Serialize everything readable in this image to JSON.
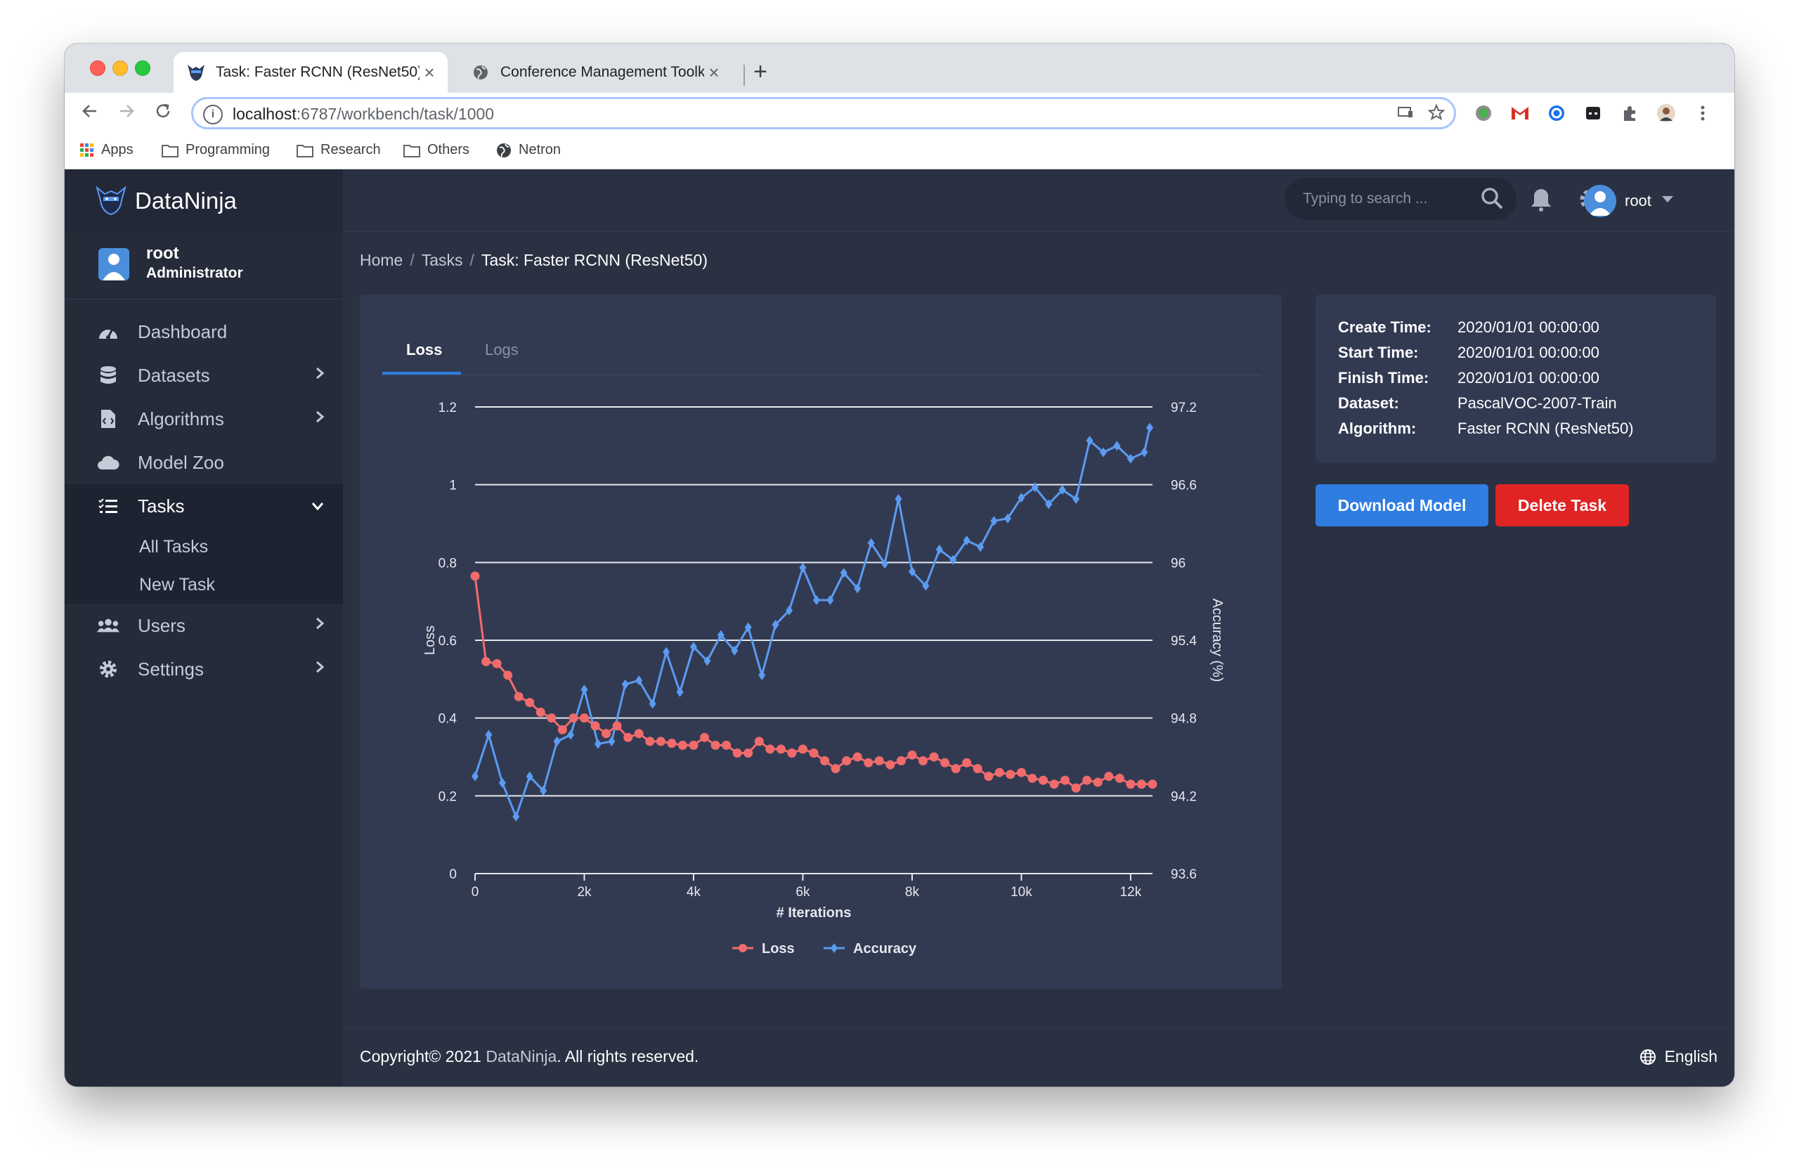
{
  "browser": {
    "tabs": [
      {
        "title": "Task: Faster RCNN (ResNet50)",
        "close": "×"
      },
      {
        "title": "Conference Management Toolk",
        "close": "×"
      }
    ],
    "new_tab": "+",
    "url_host": "localhost",
    "url_path": ":6787/workbench/task/1000",
    "bookmarks": [
      "Apps",
      "Programming",
      "Research",
      "Others",
      "Netron"
    ]
  },
  "app": {
    "brand": "DataNinja",
    "user": {
      "name": "root",
      "role": "Administrator"
    },
    "nav": [
      {
        "label": "Dashboard",
        "icon": "dashboard-icon"
      },
      {
        "label": "Datasets",
        "icon": "database-icon"
      },
      {
        "label": "Algorithms",
        "icon": "file-code-icon"
      },
      {
        "label": "Model Zoo",
        "icon": "cloud-icon"
      },
      {
        "label": "Tasks",
        "icon": "tasks-icon"
      },
      {
        "label": "Users",
        "icon": "users-icon"
      },
      {
        "label": "Settings",
        "icon": "gear-icon"
      }
    ],
    "tasks_sub": [
      "All Tasks",
      "New Task"
    ],
    "search_placeholder": "Typing to search ...",
    "header_user": "root",
    "breadcrumb": [
      "Home",
      "Tasks",
      "Task: Faster RCNN (ResNet50)"
    ],
    "chart_tabs": [
      "Loss",
      "Logs"
    ],
    "info": [
      {
        "key": "Create Time:",
        "value": "2020/01/01 00:00:00"
      },
      {
        "key": "Start Time:",
        "value": "2020/01/01 00:00:00"
      },
      {
        "key": "Finish Time:",
        "value": "2020/01/01 00:00:00"
      },
      {
        "key": "Dataset:",
        "value": "PascalVOC-2007-Train"
      },
      {
        "key": "Algorithm:",
        "value": "Faster RCNN (ResNet50)"
      }
    ],
    "buttons": {
      "download": "Download Model",
      "delete": "Delete Task"
    },
    "footer": {
      "prefix": "Copyright© 2021 ",
      "brand": "DataNinja",
      "suffix": ". All rights reserved.",
      "language": "English"
    }
  },
  "colors": {
    "loss": "#f06b6b",
    "accuracy": "#5b9bf0",
    "accent": "#2f7de1",
    "danger": "#e02424"
  },
  "chart_data": {
    "type": "line",
    "xlabel": "# Iterations",
    "ylabel": "Loss",
    "y2label": "Accuracy (%)",
    "xlim": [
      0,
      12400
    ],
    "xticks": [
      "0",
      "2k",
      "4k",
      "6k",
      "8k",
      "10k",
      "12k"
    ],
    "ylim": [
      0,
      1.2
    ],
    "yticks": [
      "0",
      "0.2",
      "0.4",
      "0.6",
      "0.8",
      "1",
      "1.2"
    ],
    "y2lim": [
      93.6,
      97.2
    ],
    "y2ticks": [
      "93.6",
      "94.2",
      "94.8",
      "95.4",
      "96",
      "96.6",
      "97.2"
    ],
    "legend": [
      "Loss",
      "Accuracy"
    ],
    "grid": true,
    "series": [
      {
        "name": "Loss",
        "axis": "left",
        "x": [
          0,
          200,
          400,
          600,
          800,
          1000,
          1200,
          1400,
          1600,
          1800,
          2000,
          2200,
          2400,
          2600,
          2800,
          3000,
          3200,
          3400,
          3600,
          3800,
          4000,
          4200,
          4400,
          4600,
          4800,
          5000,
          5200,
          5400,
          5600,
          5800,
          6000,
          6200,
          6400,
          6600,
          6800,
          7000,
          7200,
          7400,
          7600,
          7800,
          8000,
          8200,
          8400,
          8600,
          8800,
          9000,
          9200,
          9400,
          9600,
          9800,
          10000,
          10200,
          10400,
          10600,
          10800,
          11000,
          11200,
          11400,
          11600,
          11800,
          12000,
          12200,
          12400
        ],
        "values": [
          0.765,
          0.545,
          0.54,
          0.51,
          0.455,
          0.44,
          0.415,
          0.4,
          0.37,
          0.4,
          0.4,
          0.38,
          0.36,
          0.38,
          0.35,
          0.36,
          0.34,
          0.34,
          0.335,
          0.33,
          0.33,
          0.35,
          0.33,
          0.33,
          0.31,
          0.31,
          0.34,
          0.32,
          0.32,
          0.31,
          0.32,
          0.31,
          0.29,
          0.27,
          0.29,
          0.3,
          0.285,
          0.29,
          0.28,
          0.29,
          0.305,
          0.29,
          0.3,
          0.285,
          0.27,
          0.285,
          0.27,
          0.25,
          0.26,
          0.255,
          0.26,
          0.245,
          0.24,
          0.23,
          0.24,
          0.22,
          0.24,
          0.235,
          0.25,
          0.245,
          0.23,
          0.23,
          0.23
        ]
      },
      {
        "name": "Accuracy",
        "axis": "right",
        "x": [
          0,
          250,
          500,
          750,
          1000,
          1250,
          1500,
          1750,
          2000,
          2250,
          2500,
          2750,
          3000,
          3250,
          3500,
          3750,
          4000,
          4250,
          4500,
          4750,
          5000,
          5250,
          5500,
          5750,
          6000,
          6250,
          6500,
          6750,
          7000,
          7250,
          7500,
          7750,
          8000,
          8250,
          8500,
          8750,
          9000,
          9250,
          9500,
          9750,
          10000,
          10250,
          10500,
          10750,
          11000,
          11250,
          11500,
          11750,
          12000,
          12250,
          12350
        ],
        "values": [
          94.35,
          94.67,
          94.3,
          94.04,
          94.35,
          94.24,
          94.62,
          94.67,
          95.02,
          94.6,
          94.62,
          95.06,
          95.09,
          94.91,
          95.31,
          95.0,
          95.35,
          95.24,
          95.44,
          95.32,
          95.5,
          95.13,
          95.52,
          95.63,
          95.96,
          95.71,
          95.71,
          95.92,
          95.8,
          96.15,
          95.99,
          96.49,
          95.93,
          95.82,
          96.1,
          96.02,
          96.17,
          96.12,
          96.32,
          96.34,
          96.5,
          96.58,
          96.45,
          96.56,
          96.49,
          96.94,
          96.85,
          96.9,
          96.8,
          96.85,
          97.04
        ]
      }
    ]
  }
}
